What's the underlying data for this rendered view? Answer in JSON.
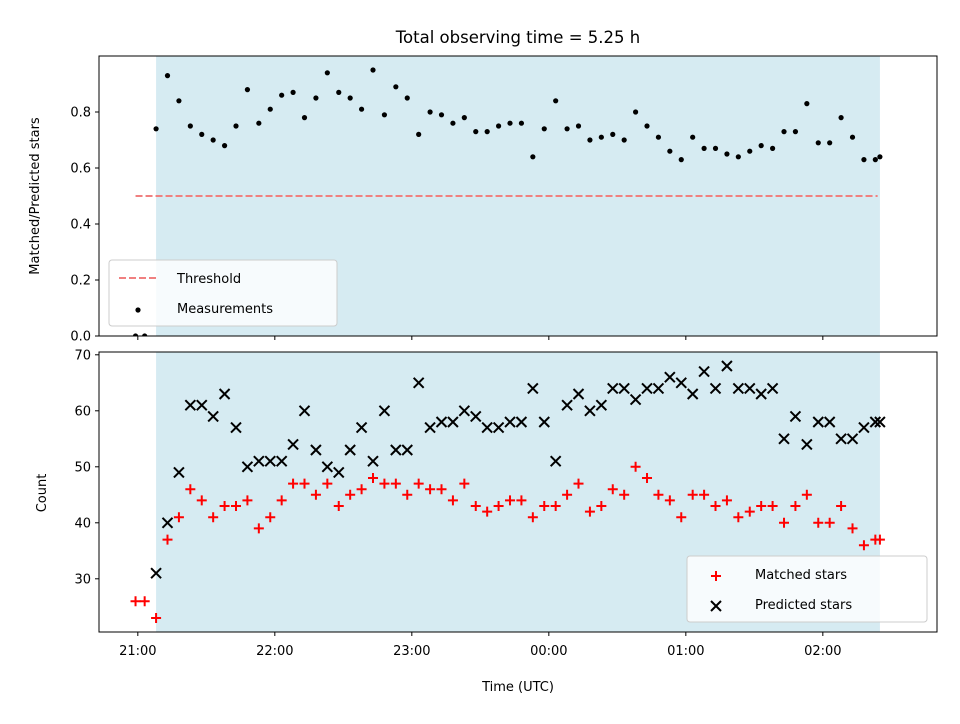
{
  "figure": {
    "title": "Total observing time = 5.25 h"
  },
  "chart_data": [
    {
      "type": "scatter",
      "ylabel": "Matched/Predicted stars",
      "xlim": [
        "20:43",
        "02:50"
      ],
      "ylim": [
        0,
        1.0
      ],
      "x_ticks": [],
      "y_ticks": [
        "0.0",
        "0.2",
        "0.4",
        "0.6",
        "0.8"
      ],
      "shaded_span": [
        "21:08",
        "02:25"
      ],
      "shade_color": "#add8e6",
      "threshold": {
        "label": "Threshold",
        "value": 0.5,
        "x_range": [
          "20:59",
          "02:24"
        ],
        "color": "#f08080"
      },
      "legend": {
        "position": "lower-left",
        "entries": [
          "Threshold",
          "Measurements"
        ]
      },
      "series": [
        {
          "name": "Measurements",
          "marker": "dot",
          "color": "#000000",
          "x": [
            "20:59",
            "21:03",
            "21:08",
            "21:13",
            "21:18",
            "21:23",
            "21:28",
            "21:33",
            "21:38",
            "21:43",
            "21:48",
            "21:53",
            "21:58",
            "22:03",
            "22:08",
            "22:13",
            "22:18",
            "22:23",
            "22:28",
            "22:33",
            "22:38",
            "22:43",
            "22:48",
            "22:53",
            "22:58",
            "23:03",
            "23:08",
            "23:13",
            "23:18",
            "23:23",
            "23:28",
            "23:33",
            "23:38",
            "23:43",
            "23:48",
            "23:53",
            "23:58",
            "00:03",
            "00:08",
            "00:13",
            "00:18",
            "00:23",
            "00:28",
            "00:33",
            "00:38",
            "00:43",
            "00:48",
            "00:53",
            "00:58",
            "01:03",
            "01:08",
            "01:13",
            "01:18",
            "01:23",
            "01:28",
            "01:33",
            "01:38",
            "01:43",
            "01:48",
            "01:53",
            "01:58",
            "02:03",
            "02:08",
            "02:13",
            "02:18",
            "02:23",
            "02:25"
          ],
          "y": [
            0.0,
            0.0,
            0.74,
            0.93,
            0.84,
            0.75,
            0.72,
            0.7,
            0.68,
            0.75,
            0.88,
            0.76,
            0.81,
            0.86,
            0.87,
            0.78,
            0.85,
            0.94,
            0.87,
            0.85,
            0.81,
            0.95,
            0.79,
            0.89,
            0.85,
            0.72,
            0.8,
            0.79,
            0.76,
            0.78,
            0.73,
            0.73,
            0.75,
            0.76,
            0.76,
            0.64,
            0.74,
            0.84,
            0.74,
            0.75,
            0.7,
            0.71,
            0.72,
            0.7,
            0.8,
            0.75,
            0.71,
            0.66,
            0.63,
            0.71,
            0.67,
            0.67,
            0.65,
            0.64,
            0.66,
            0.68,
            0.67,
            0.73,
            0.73,
            0.83,
            0.69,
            0.69,
            0.78,
            0.71,
            0.63,
            0.63,
            0.64
          ]
        }
      ]
    },
    {
      "type": "scatter",
      "xlabel": "Time (UTC)",
      "ylabel": "Count",
      "xlim": [
        "20:43",
        "02:50"
      ],
      "ylim": [
        20.5,
        70.5
      ],
      "x_ticks": [
        "21:00",
        "22:00",
        "23:00",
        "00:00",
        "01:00",
        "02:00"
      ],
      "y_ticks": [
        "30",
        "40",
        "50",
        "60",
        "70"
      ],
      "shaded_span": [
        "21:08",
        "02:25"
      ],
      "shade_color": "#add8e6",
      "legend": {
        "position": "lower-right",
        "entries": [
          "Matched stars",
          "Predicted stars"
        ]
      },
      "series": [
        {
          "name": "Matched stars",
          "marker": "plus",
          "color": "#ff0000",
          "x": [
            "20:59",
            "21:03",
            "21:08",
            "21:13",
            "21:18",
            "21:23",
            "21:28",
            "21:33",
            "21:38",
            "21:43",
            "21:48",
            "21:53",
            "21:58",
            "22:03",
            "22:08",
            "22:13",
            "22:18",
            "22:23",
            "22:28",
            "22:33",
            "22:38",
            "22:43",
            "22:48",
            "22:53",
            "22:58",
            "23:03",
            "23:08",
            "23:13",
            "23:18",
            "23:23",
            "23:28",
            "23:33",
            "23:38",
            "23:43",
            "23:48",
            "23:53",
            "23:58",
            "00:03",
            "00:08",
            "00:13",
            "00:18",
            "00:23",
            "00:28",
            "00:33",
            "00:38",
            "00:43",
            "00:48",
            "00:53",
            "00:58",
            "01:03",
            "01:08",
            "01:13",
            "01:18",
            "01:23",
            "01:28",
            "01:33",
            "01:38",
            "01:43",
            "01:48",
            "01:53",
            "01:58",
            "02:03",
            "02:08",
            "02:13",
            "02:18",
            "02:23",
            "02:25"
          ],
          "y": [
            26,
            26,
            23,
            37,
            41,
            46,
            44,
            41,
            43,
            43,
            44,
            39,
            41,
            44,
            47,
            47,
            45,
            47,
            43,
            45,
            46,
            48,
            47,
            47,
            45,
            47,
            46,
            46,
            44,
            47,
            43,
            42,
            43,
            44,
            44,
            41,
            43,
            43,
            45,
            47,
            42,
            43,
            46,
            45,
            50,
            48,
            45,
            44,
            41,
            45,
            45,
            43,
            44,
            41,
            42,
            43,
            43,
            40,
            43,
            45,
            40,
            40,
            43,
            39,
            36,
            37,
            37
          ]
        },
        {
          "name": "Predicted stars",
          "marker": "x",
          "color": "#000000",
          "x": [
            "21:08",
            "21:13",
            "21:18",
            "21:23",
            "21:28",
            "21:33",
            "21:38",
            "21:43",
            "21:48",
            "21:53",
            "21:58",
            "22:03",
            "22:08",
            "22:13",
            "22:18",
            "22:23",
            "22:28",
            "22:33",
            "22:38",
            "22:43",
            "22:48",
            "22:53",
            "22:58",
            "23:03",
            "23:08",
            "23:13",
            "23:18",
            "23:23",
            "23:28",
            "23:33",
            "23:38",
            "23:43",
            "23:48",
            "23:53",
            "23:58",
            "00:03",
            "00:08",
            "00:13",
            "00:18",
            "00:23",
            "00:28",
            "00:33",
            "00:38",
            "00:43",
            "00:48",
            "00:53",
            "00:58",
            "01:03",
            "01:08",
            "01:13",
            "01:18",
            "01:23",
            "01:28",
            "01:33",
            "01:38",
            "01:43",
            "01:48",
            "01:53",
            "01:58",
            "02:03",
            "02:08",
            "02:13",
            "02:18",
            "02:23",
            "02:25"
          ],
          "y": [
            31,
            40,
            49,
            61,
            61,
            59,
            63,
            57,
            50,
            51,
            51,
            51,
            54,
            60,
            53,
            50,
            49,
            53,
            57,
            51,
            60,
            53,
            53,
            65,
            57,
            58,
            58,
            60,
            59,
            57,
            57,
            58,
            58,
            64,
            58,
            51,
            61,
            63,
            60,
            61,
            64,
            64,
            62,
            64,
            64,
            66,
            65,
            63,
            67,
            64,
            68,
            64,
            64,
            63,
            64,
            55,
            59,
            54,
            58,
            58,
            55,
            55,
            57,
            58,
            58
          ]
        }
      ]
    }
  ]
}
